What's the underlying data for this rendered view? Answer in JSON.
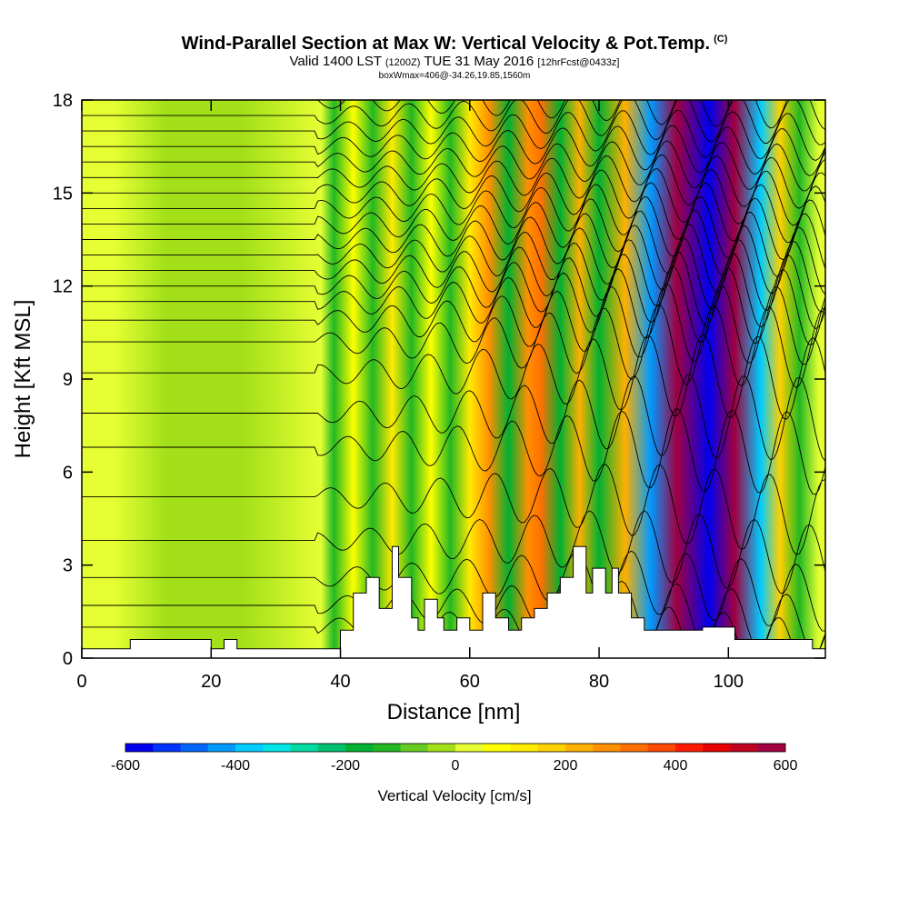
{
  "header": {
    "title": "Wind-Parallel Section at Max W: Vertical Velocity & Pot.Temp.",
    "copyright": "(C)",
    "valid_prefix": "Valid 1400 LST",
    "valid_zulu": "(1200Z)",
    "valid_date": "TUE 31 May 2016",
    "forecast": "[12hrFcst@0433z]",
    "box_info": "boxWmax=406@-34.26,19.85,1560m"
  },
  "chart_data": {
    "type": "heatmap",
    "xlabel": "Distance [nm]",
    "ylabel": "Height [Kft MSL]",
    "xlim": [
      0,
      115
    ],
    "ylim": [
      0,
      18
    ],
    "x_ticks": [
      0,
      20,
      40,
      60,
      80,
      100
    ],
    "y_ticks": [
      0,
      3,
      6,
      9,
      12,
      15,
      18
    ],
    "x_tick_labels": [
      "0",
      "20",
      "40",
      "60",
      "80",
      "100"
    ],
    "y_tick_labels": [
      "0",
      "3",
      "6",
      "9",
      "12",
      "15",
      "18"
    ],
    "colorbar": {
      "label": "Vertical Velocity [cm/s]",
      "min": -600,
      "max": 600,
      "step": 50,
      "tick_values": [
        -600,
        -400,
        -200,
        0,
        200,
        400,
        600
      ],
      "tick_labels": [
        "-600",
        "-400",
        "-200",
        "0",
        "200",
        "400",
        "600"
      ],
      "colors": [
        "#0000ee",
        "#0033ff",
        "#0066ff",
        "#0099ff",
        "#00ccff",
        "#00e5e5",
        "#00d9a0",
        "#00c070",
        "#00b030",
        "#22b822",
        "#66cc22",
        "#a3e01a",
        "#e5ff33",
        "#ffff00",
        "#ffea00",
        "#ffd000",
        "#ffb000",
        "#ff9000",
        "#ff7000",
        "#ff4a00",
        "#ff1a00",
        "#e60000",
        "#c00020",
        "#a00040"
      ]
    },
    "vertical_velocity_bands": [
      {
        "x": 5,
        "w": 0
      },
      {
        "x": 13,
        "w": -40
      },
      {
        "x": 25,
        "w": -50
      },
      {
        "x": 37,
        "w": 40
      },
      {
        "x": 39,
        "w": -120
      },
      {
        "x": 42,
        "w": 60
      },
      {
        "x": 45,
        "w": -150
      },
      {
        "x": 48,
        "w": 100
      },
      {
        "x": 51,
        "w": -150
      },
      {
        "x": 54,
        "w": 70
      },
      {
        "x": 57,
        "w": -130
      },
      {
        "x": 60,
        "w": 130
      },
      {
        "x": 63,
        "w": 250
      },
      {
        "x": 66,
        "w": -170
      },
      {
        "x": 69,
        "w": 250
      },
      {
        "x": 71,
        "w": 320
      },
      {
        "x": 74,
        "w": -170
      },
      {
        "x": 77,
        "w": 230
      },
      {
        "x": 80,
        "w": -200
      },
      {
        "x": 84,
        "w": 220
      },
      {
        "x": 88,
        "w": -450
      },
      {
        "x": 92,
        "w": 580
      },
      {
        "x": 97,
        "w": -580
      },
      {
        "x": 101,
        "w": 590
      },
      {
        "x": 105,
        "w": -400
      },
      {
        "x": 108,
        "w": 160
      },
      {
        "x": 111,
        "w": -150
      },
      {
        "x": 114,
        "w": 0
      }
    ],
    "terrain": [
      [
        0,
        0.3
      ],
      [
        7.5,
        0.3
      ],
      [
        7.5,
        0.6
      ],
      [
        20,
        0.6
      ],
      [
        20,
        0.3
      ],
      [
        22,
        0.3
      ],
      [
        22,
        0.6
      ],
      [
        24,
        0.6
      ],
      [
        24,
        0.3
      ],
      [
        40,
        0.3
      ],
      [
        40,
        0.9
      ],
      [
        42,
        0.9
      ],
      [
        42,
        2.1
      ],
      [
        44,
        2.1
      ],
      [
        44,
        2.6
      ],
      [
        46,
        2.6
      ],
      [
        46,
        1.6
      ],
      [
        48,
        1.6
      ],
      [
        48,
        3.6
      ],
      [
        49,
        3.6
      ],
      [
        49,
        2.6
      ],
      [
        51,
        2.6
      ],
      [
        51,
        1.3
      ],
      [
        52,
        1.3
      ],
      [
        52,
        0.9
      ],
      [
        53,
        0.9
      ],
      [
        53,
        1.9
      ],
      [
        55,
        1.9
      ],
      [
        55,
        1.3
      ],
      [
        56,
        1.3
      ],
      [
        56,
        0.9
      ],
      [
        58,
        0.9
      ],
      [
        58,
        1.3
      ],
      [
        60,
        1.3
      ],
      [
        60,
        0.9
      ],
      [
        62,
        0.9
      ],
      [
        62,
        2.1
      ],
      [
        64,
        2.1
      ],
      [
        64,
        1.3
      ],
      [
        66,
        1.3
      ],
      [
        66,
        0.9
      ],
      [
        68,
        0.9
      ],
      [
        68,
        1.3
      ],
      [
        70,
        1.3
      ],
      [
        70,
        1.6
      ],
      [
        72,
        1.6
      ],
      [
        72,
        2.1
      ],
      [
        74,
        2.1
      ],
      [
        74,
        2.6
      ],
      [
        76,
        2.6
      ],
      [
        76,
        3.6
      ],
      [
        78,
        3.6
      ],
      [
        78,
        2.1
      ],
      [
        79,
        2.1
      ],
      [
        79,
        2.9
      ],
      [
        81,
        2.9
      ],
      [
        81,
        2.1
      ],
      [
        82,
        2.1
      ],
      [
        82,
        2.9
      ],
      [
        83,
        2.9
      ],
      [
        83,
        2.1
      ],
      [
        85,
        2.1
      ],
      [
        85,
        1.3
      ],
      [
        87,
        1.3
      ],
      [
        87,
        0.9
      ],
      [
        96,
        0.9
      ],
      [
        96,
        1.0
      ],
      [
        101,
        1.0
      ],
      [
        101,
        0.6
      ],
      [
        113,
        0.6
      ],
      [
        113,
        0.3
      ],
      [
        115,
        0.3
      ]
    ],
    "theta_base_heights": [
      1.0,
      1.7,
      2.6,
      3.8,
      5.2,
      6.8,
      7.9,
      9.2,
      10.2,
      10.9,
      11.5,
      12.0,
      12.5,
      13.0,
      13.5,
      14.0,
      14.5,
      15.0,
      15.5,
      16.0,
      16.5,
      17.0,
      17.5,
      18.0
    ]
  }
}
